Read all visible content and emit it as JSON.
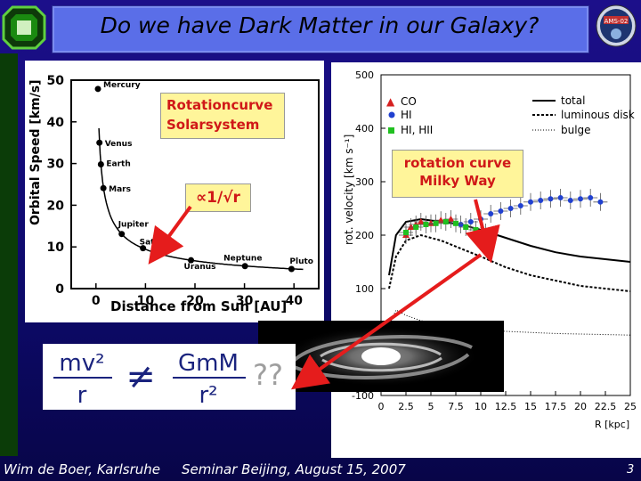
{
  "title": "Do we have Dark Matter in our Galaxy?",
  "footer": {
    "author": "Wim de Boer, Karlsruhe",
    "event": "Seminar Beijing, August 15, 2007",
    "page": "3"
  },
  "solar_chart": {
    "ylabel": "Orbital Speed [km/s]",
    "xlabel": "Distance from Sun [AU]",
    "yticks": [
      "50",
      "40",
      "30",
      "20",
      "10",
      "0"
    ],
    "xticks": [
      "0",
      "10",
      "20",
      "30",
      "40"
    ],
    "planets": [
      "Mercury",
      "Venus",
      "Earth",
      "Mars",
      "Jupiter",
      "Saturn",
      "Uranus",
      "Neptune",
      "Pluto"
    ],
    "annotation": "Rotationcurve Solarsystem",
    "proportional": "∝1/√r"
  },
  "milkyway_chart": {
    "ylabel": "rot. velocity [km s⁻¹]",
    "xlabel": "R [kpc]",
    "yticks": [
      "500",
      "400",
      "300",
      "200",
      "100",
      "-100"
    ],
    "xticks": [
      "0",
      "2.5",
      "5",
      "7.5",
      "10",
      "12.5",
      "15",
      "17.5",
      "20",
      "22.5",
      "25"
    ],
    "legend_markers": [
      "CO",
      "HI",
      "HI, HII"
    ],
    "legend_lines": [
      "total",
      "luminous disk",
      "bulge"
    ],
    "annotation": "rotation curve Milky Way",
    "colors": {
      "CO": "#d62020",
      "HI": "#2040d0",
      "HI_HII": "#20c020"
    }
  },
  "formula": {
    "lhs_num": "mv²",
    "lhs_den": "r",
    "op": "≠",
    "rhs_num": "GmM",
    "rhs_den": "r²",
    "suffix": "??"
  },
  "chart_data": [
    {
      "type": "scatter",
      "title": "Rotationcurve Solarsystem",
      "xlabel": "Distance from Sun [AU]",
      "ylabel": "Orbital Speed [km/s]",
      "xlim": [
        -5,
        45
      ],
      "ylim": [
        0,
        50
      ],
      "points": [
        {
          "name": "Mercury",
          "x": 0.4,
          "y": 47.9
        },
        {
          "name": "Venus",
          "x": 0.7,
          "y": 35.0
        },
        {
          "name": "Earth",
          "x": 1.0,
          "y": 29.8
        },
        {
          "name": "Mars",
          "x": 1.5,
          "y": 24.1
        },
        {
          "name": "Jupiter",
          "x": 5.2,
          "y": 13.1
        },
        {
          "name": "Saturn",
          "x": 9.5,
          "y": 9.7
        },
        {
          "name": "Uranus",
          "x": 19.2,
          "y": 6.8
        },
        {
          "name": "Neptune",
          "x": 30.1,
          "y": 5.4
        },
        {
          "name": "Pluto",
          "x": 39.5,
          "y": 4.7
        }
      ]
    },
    {
      "type": "line",
      "title": "rotation curve Milky Way",
      "xlabel": "R [kpc]",
      "ylabel": "rot. velocity [km s⁻¹]",
      "xlim": [
        0,
        25
      ],
      "ylim": [
        -100,
        500
      ],
      "series": [
        {
          "name": "total",
          "x": [
            0.8,
            1.5,
            2.5,
            4,
            6,
            8,
            10,
            12.5,
            15,
            17.5,
            20,
            22.5,
            25
          ],
          "y": [
            125,
            200,
            225,
            230,
            225,
            220,
            210,
            195,
            180,
            168,
            160,
            155,
            150
          ]
        },
        {
          "name": "luminous disk",
          "x": [
            0.8,
            1.5,
            2.5,
            4,
            6,
            8,
            10,
            12.5,
            15,
            17.5,
            20,
            22.5,
            25
          ],
          "y": [
            100,
            160,
            190,
            200,
            190,
            175,
            160,
            140,
            125,
            115,
            105,
            100,
            95
          ]
        },
        {
          "name": "bulge",
          "x": [
            0.8,
            1.5,
            2.5,
            4,
            6,
            8,
            10,
            12.5,
            15,
            17.5,
            20,
            22.5,
            25
          ],
          "y": [
            30,
            60,
            50,
            40,
            32,
            27,
            23,
            20,
            18,
            16,
            15,
            14,
            13
          ]
        }
      ],
      "markers": [
        {
          "name": "CO",
          "x": [
            2.5,
            3,
            3.5,
            4,
            5,
            6,
            7
          ],
          "y": [
            200,
            215,
            220,
            225,
            222,
            228,
            230
          ]
        },
        {
          "name": "HI",
          "x": [
            8,
            9,
            10,
            11,
            12,
            13,
            14,
            15,
            16,
            17,
            18,
            19,
            20,
            21,
            22
          ],
          "y": [
            220,
            225,
            230,
            240,
            245,
            250,
            255,
            262,
            265,
            268,
            270,
            265,
            268,
            270,
            262
          ]
        },
        {
          "name": "HI, HII",
          "x": [
            2.5,
            3.5,
            4.5,
            5.5,
            6.5,
            7.5,
            8.5,
            9.5,
            10.5
          ],
          "y": [
            205,
            215,
            220,
            222,
            225,
            222,
            215,
            210,
            205
          ]
        }
      ]
    }
  ]
}
